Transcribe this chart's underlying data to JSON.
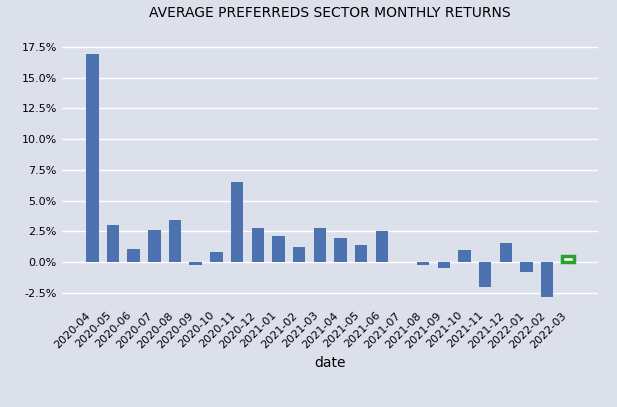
{
  "title": "AVERAGE PREFERREDS SECTOR MONTHLY RETURNS",
  "xlabel": "date",
  "background_color": "#dce0eb",
  "plot_bg_color": "#dce0eb",
  "bar_color": "#4c72b0",
  "last_bar_facecolor": "#ffffff",
  "last_bar_edgecolor": "#2ca02c",
  "categories": [
    "2020-04",
    "2020-05",
    "2020-06",
    "2020-07",
    "2020-08",
    "2020-09",
    "2020-10",
    "2020-11",
    "2020-12",
    "2021-01",
    "2021-02",
    "2021-03",
    "2021-04",
    "2021-05",
    "2021-06",
    "2021-07",
    "2021-08",
    "2021-09",
    "2021-10",
    "2021-11",
    "2021-12",
    "2022-01",
    "2022-02",
    "2022-03"
  ],
  "values": [
    0.169,
    0.03,
    0.011,
    0.026,
    0.034,
    -0.002,
    0.008,
    0.065,
    0.028,
    0.021,
    0.012,
    0.028,
    0.02,
    0.014,
    0.025,
    0.0,
    -0.002,
    -0.005,
    0.01,
    -0.02,
    0.016,
    -0.008,
    -0.028,
    0.005
  ],
  "ylim": [
    -0.035,
    0.19
  ],
  "yticks": [
    -0.025,
    0.0,
    0.025,
    0.05,
    0.075,
    0.1,
    0.125,
    0.15,
    0.175
  ],
  "figsize": [
    6.17,
    4.07
  ],
  "dpi": 100,
  "title_fontsize": 10,
  "tick_fontsize": 8,
  "xlabel_fontsize": 10,
  "bar_width": 0.6,
  "grid_color": "#ffffff",
  "grid_linewidth": 1.0
}
